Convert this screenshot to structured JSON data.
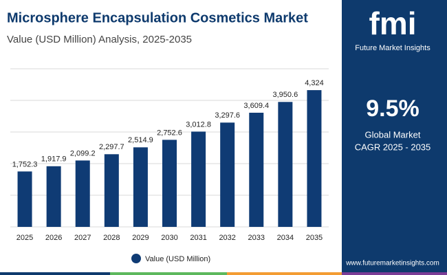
{
  "chart_data": {
    "type": "bar",
    "title": "Microsphere Encapsulation Cosmetics Market",
    "subtitle": "Value (USD Million) Analysis, 2025-2035",
    "categories": [
      "2025",
      "2026",
      "2027",
      "2028",
      "2029",
      "2030",
      "2031",
      "2032",
      "2033",
      "2034",
      "2035"
    ],
    "series": [
      {
        "name": "Value (USD Million)",
        "color": "#0f3b74",
        "values": [
          1752.3,
          1917.9,
          2099.2,
          2297.7,
          2514.9,
          2752.6,
          3012.8,
          3297.6,
          3609.4,
          3950.6,
          4324
        ],
        "value_labels": [
          "1,752.3",
          "1,917.9",
          "2,099.2",
          "2,297.7",
          "2,514.9",
          "2,752.6",
          "3,012.8",
          "3,297.6",
          "3,609.4",
          "3,950.6",
          "4,324"
        ]
      }
    ],
    "ylim": [
      0,
      5000
    ],
    "yticks": [
      0,
      1000,
      2000,
      3000,
      4000,
      5000
    ],
    "grid": true
  },
  "sidebar": {
    "logo": "fmi",
    "brand": "Future Market Insights",
    "cagr": "9.5%",
    "cagr_label_1": "Global Market",
    "cagr_label_2": "CAGR 2025 - 2035",
    "url": "www.futuremarketinsights.com"
  }
}
